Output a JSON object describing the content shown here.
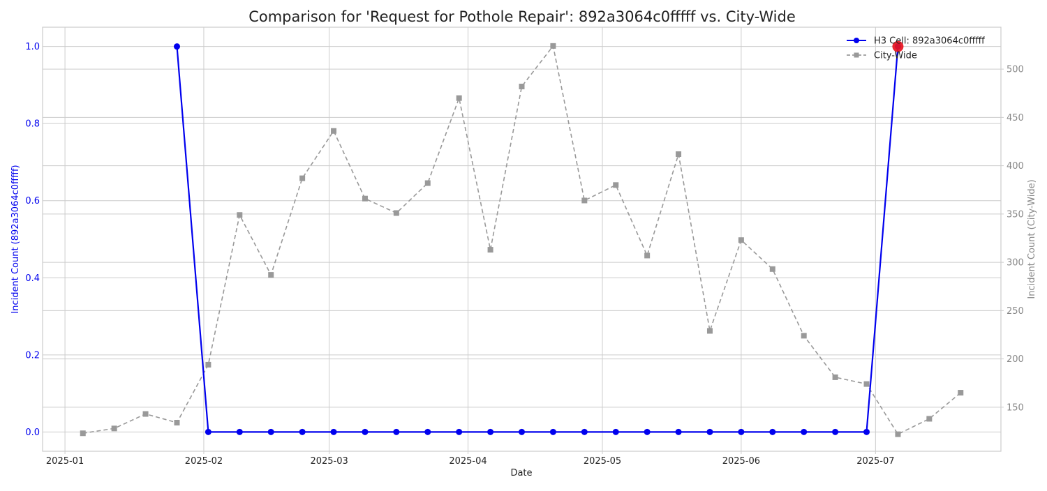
{
  "chart_data": {
    "type": "line",
    "title": "Comparison for 'Request for Pothole Repair': 892a3064c0fffff vs. City-Wide",
    "xlabel": "Date",
    "ylabel_left": "Incident Count (892a3064c0fffff)",
    "ylabel_right": "Incident Count (City-Wide)",
    "x_range": [
      "2024-12-27",
      "2025-07-29"
    ],
    "ylim_left": [
      -0.05,
      1.05
    ],
    "ylim_right": [
      104.4,
      543.4
    ],
    "x_ticks": [
      {
        "date": "2025-01-01",
        "label": "2025-01"
      },
      {
        "date": "2025-02-01",
        "label": "2025-02"
      },
      {
        "date": "2025-03-01",
        "label": "2025-03"
      },
      {
        "date": "2025-04-01",
        "label": "2025-04"
      },
      {
        "date": "2025-05-01",
        "label": "2025-05"
      },
      {
        "date": "2025-06-01",
        "label": "2025-06"
      },
      {
        "date": "2025-07-01",
        "label": "2025-07"
      }
    ],
    "y_ticks_left": [
      {
        "value": 0.0,
        "label": "0.0"
      },
      {
        "value": 0.2,
        "label": "0.2"
      },
      {
        "value": 0.4,
        "label": "0.4"
      },
      {
        "value": 0.6,
        "label": "0.6"
      },
      {
        "value": 0.8,
        "label": "0.8"
      },
      {
        "value": 1.0,
        "label": "1.0"
      }
    ],
    "y_ticks_right": [
      {
        "value": 150,
        "label": "150"
      },
      {
        "value": 200,
        "label": "200"
      },
      {
        "value": 250,
        "label": "250"
      },
      {
        "value": 300,
        "label": "300"
      },
      {
        "value": 350,
        "label": "350"
      },
      {
        "value": 400,
        "label": "400"
      },
      {
        "value": 450,
        "label": "450"
      },
      {
        "value": 500,
        "label": "500"
      }
    ],
    "grid": true,
    "legend_position": "top-right",
    "series": [
      {
        "name": "H3 Cell: 892a3064c0fffff",
        "axis": "left",
        "color": "#0000ee",
        "marker": "circle",
        "line_style": "solid",
        "dates": [
          "2025-01-26",
          "2025-02-02",
          "2025-02-09",
          "2025-02-16",
          "2025-02-23",
          "2025-03-02",
          "2025-03-09",
          "2025-03-16",
          "2025-03-23",
          "2025-03-30",
          "2025-04-06",
          "2025-04-13",
          "2025-04-20",
          "2025-04-27",
          "2025-05-04",
          "2025-05-11",
          "2025-05-18",
          "2025-05-25",
          "2025-06-01",
          "2025-06-08",
          "2025-06-15",
          "2025-06-22",
          "2025-06-29",
          "2025-07-06"
        ],
        "values": [
          1,
          0,
          0,
          0,
          0,
          0,
          0,
          0,
          0,
          0,
          0,
          0,
          0,
          0,
          0,
          0,
          0,
          0,
          0,
          0,
          0,
          0,
          0,
          1
        ]
      },
      {
        "name": "City-Wide",
        "axis": "right",
        "color": "#999999",
        "marker": "square",
        "line_style": "dashed",
        "dates": [
          "2025-01-05",
          "2025-01-12",
          "2025-01-19",
          "2025-01-26",
          "2025-02-02",
          "2025-02-09",
          "2025-02-16",
          "2025-02-23",
          "2025-03-02",
          "2025-03-09",
          "2025-03-16",
          "2025-03-23",
          "2025-03-30",
          "2025-04-06",
          "2025-04-13",
          "2025-04-20",
          "2025-04-27",
          "2025-05-04",
          "2025-05-11",
          "2025-05-18",
          "2025-05-25",
          "2025-06-01",
          "2025-06-08",
          "2025-06-15",
          "2025-06-22",
          "2025-06-29",
          "2025-07-06",
          "2025-07-13",
          "2025-07-20"
        ],
        "values": [
          123,
          128,
          143,
          134,
          194,
          349,
          287,
          387,
          436,
          366,
          351,
          382,
          470,
          313,
          482,
          524,
          364,
          380,
          307,
          412,
          229,
          323,
          293,
          224,
          181,
          174,
          122,
          138,
          165
        ]
      }
    ],
    "highlight": {
      "date": "2025-07-06",
      "value": 1,
      "axis": "left",
      "color": "#e8141e"
    }
  }
}
